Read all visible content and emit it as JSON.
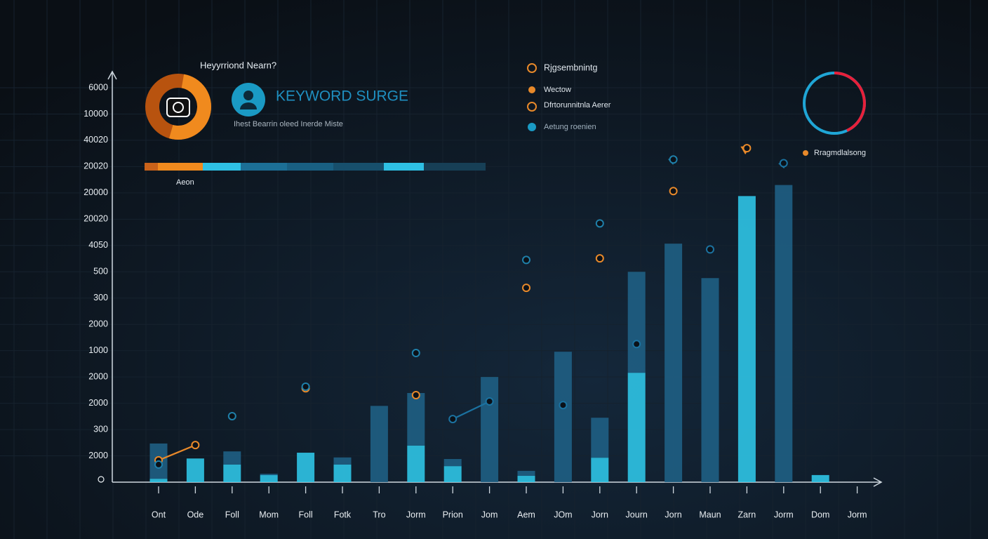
{
  "chart_data": {
    "type": "bar",
    "title": "KEYWORD SURGE",
    "subtitle": "Ihest Bearrin oleed Inerde Miste",
    "widget_label": "Heyyrriond Nearn?",
    "progress_label": "Aeon",
    "legend_labels": [
      "Rjgsembnintg",
      "Wectow",
      "Dfrtorunnitnla Aerer",
      "Aetung roenien",
      "Rragmdlalsong"
    ],
    "categories": [
      "Ont",
      "Ode",
      "Foll",
      "Mom",
      "Foll",
      "Fotk",
      "Tro",
      "Jorm",
      "Prion",
      "Jom",
      "Aem",
      "JOm",
      "Jorn",
      "Journ",
      "Jorn",
      "Maun",
      "Zarn",
      "Jorm",
      "Dom",
      "Jorm"
    ],
    "ylim": [
      0,
      15
    ],
    "yticks": [
      {
        "value": 1,
        "label": "2000"
      },
      {
        "value": 2,
        "label": "300"
      },
      {
        "value": 3,
        "label": "2000"
      },
      {
        "value": 4,
        "label": "2000"
      },
      {
        "value": 5,
        "label": "1000"
      },
      {
        "value": 6,
        "label": "2000"
      },
      {
        "value": 7,
        "label": "300"
      },
      {
        "value": 8,
        "label": "500"
      },
      {
        "value": 9,
        "label": "4050"
      },
      {
        "value": 10,
        "label": "20020"
      },
      {
        "value": 11,
        "label": "20000"
      },
      {
        "value": 12,
        "label": "20020"
      },
      {
        "value": 13,
        "label": "40020"
      },
      {
        "value": 14,
        "label": "10000"
      },
      {
        "value": 15,
        "label": "6000"
      }
    ],
    "grid": true,
    "series": [
      {
        "type": "bar",
        "color": "#2fc4e6",
        "values": [
          0.13,
          0.9,
          0.67,
          0.27,
          1.12,
          0.67,
          0,
          1.39,
          0.61,
          0,
          0.24,
          0,
          0.93,
          4.16,
          0,
          0,
          10.88,
          0,
          0.27,
          0
        ]
      },
      {
        "type": "bar",
        "color": "#1f5f84",
        "values": [
          1.34,
          0,
          0.5,
          0.05,
          0,
          0.27,
          2.9,
          2.0,
          0.27,
          4.0,
          0.19,
          4.96,
          1.52,
          3.84,
          9.07,
          7.76,
          0,
          11.3,
          0,
          0
        ]
      },
      {
        "type": "line",
        "color": "#e8892a",
        "values": [
          0.83,
          1.41,
          null,
          null,
          3.57,
          null,
          null,
          3.31,
          null,
          null,
          7.39,
          null,
          8.51,
          null,
          11.07,
          null,
          12.7,
          null,
          null,
          null
        ]
      },
      {
        "type": "line",
        "color": "#1f80aa",
        "values": [
          0.67,
          null,
          2.51,
          null,
          3.63,
          null,
          null,
          4.91,
          null,
          null,
          8.45,
          null,
          9.84,
          null,
          12.27,
          null,
          null,
          null,
          null,
          null
        ]
      },
      {
        "type": "line",
        "color": "#1b72a0",
        "values": [
          null,
          null,
          null,
          null,
          null,
          null,
          null,
          null,
          2.4,
          3.07,
          null,
          2.93,
          null,
          5.25,
          null,
          8.85,
          null,
          12.13,
          null,
          null
        ]
      }
    ]
  }
}
